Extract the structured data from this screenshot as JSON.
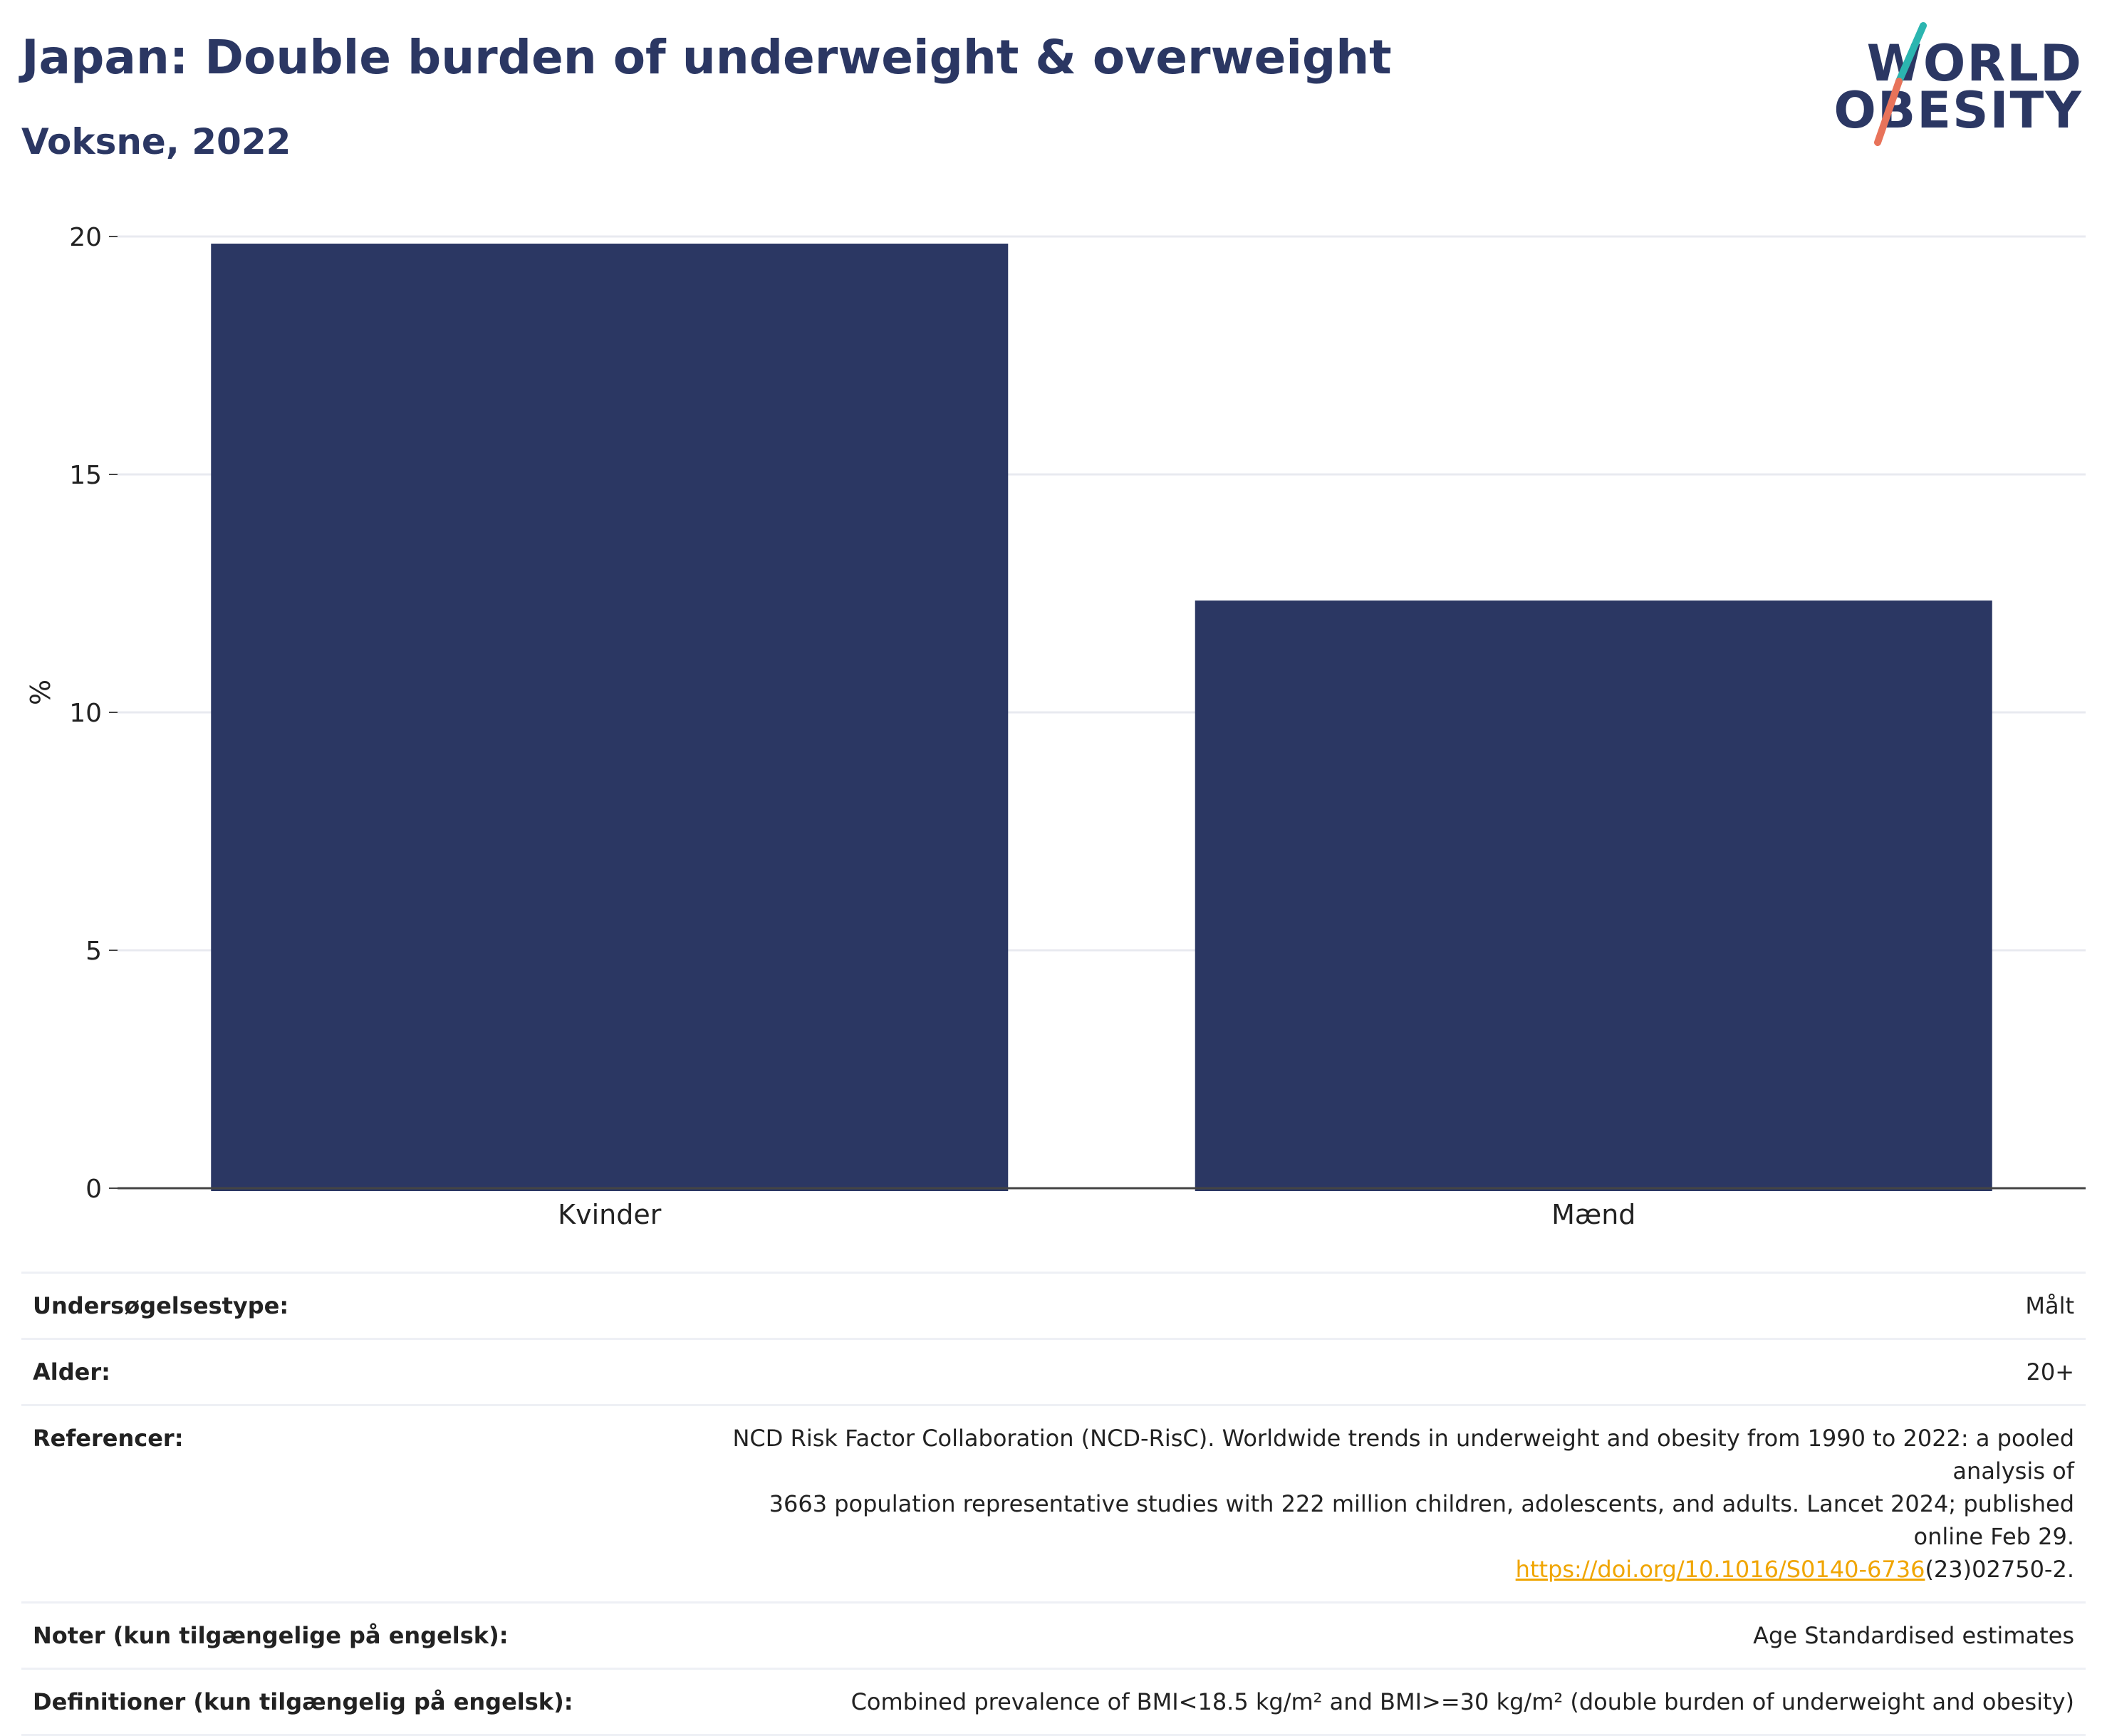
{
  "header": {
    "title": "Japan: Double burden of underweight & overweight",
    "subtitle": "Voksne, 2022"
  },
  "logo": {
    "line1": "WORLD",
    "line2": "OBESITY",
    "colors": {
      "text": "#2b3763",
      "slash_top": "#2bb5b0",
      "slash_bottom": "#e8735a"
    }
  },
  "chart_data": {
    "type": "bar",
    "categories": [
      "Kvinder",
      "Mænd"
    ],
    "values": [
      19.85,
      12.35
    ],
    "ylabel": "%",
    "xlabel": "",
    "ylim": [
      0,
      20
    ],
    "yticks": [
      0,
      5,
      10,
      15,
      20
    ],
    "grid": true,
    "bar_color": "#2b3763",
    "gridline_color": "#e8eaf0"
  },
  "meta": {
    "survey_type_label": "Undersøgelsestype:",
    "survey_type_value": "Målt",
    "age_label": "Alder:",
    "age_value": "20+",
    "references_label": "Referencer:",
    "references_line1": "NCD Risk Factor Collaboration (NCD-RisC). Worldwide trends in underweight and obesity from 1990 to 2022: a pooled analysis of",
    "references_line2": "3663 population representative studies with 222 million children, adolescents, and adults. Lancet 2024; published online Feb 29.",
    "references_link": "https://doi.org/10.1016/S0140-6736",
    "references_tail": "(23)02750-2.",
    "notes_label": "Noter (kun tilgængelige på engelsk):",
    "notes_value": "Age Standardised estimates",
    "definitions_label": "Definitioner (kun tilgængelig på engelsk):",
    "definitions_value": "Combined prevalence of BMI<18.5 kg/m² and BMI>=30 kg/m² (double burden of underweight and obesity)"
  }
}
